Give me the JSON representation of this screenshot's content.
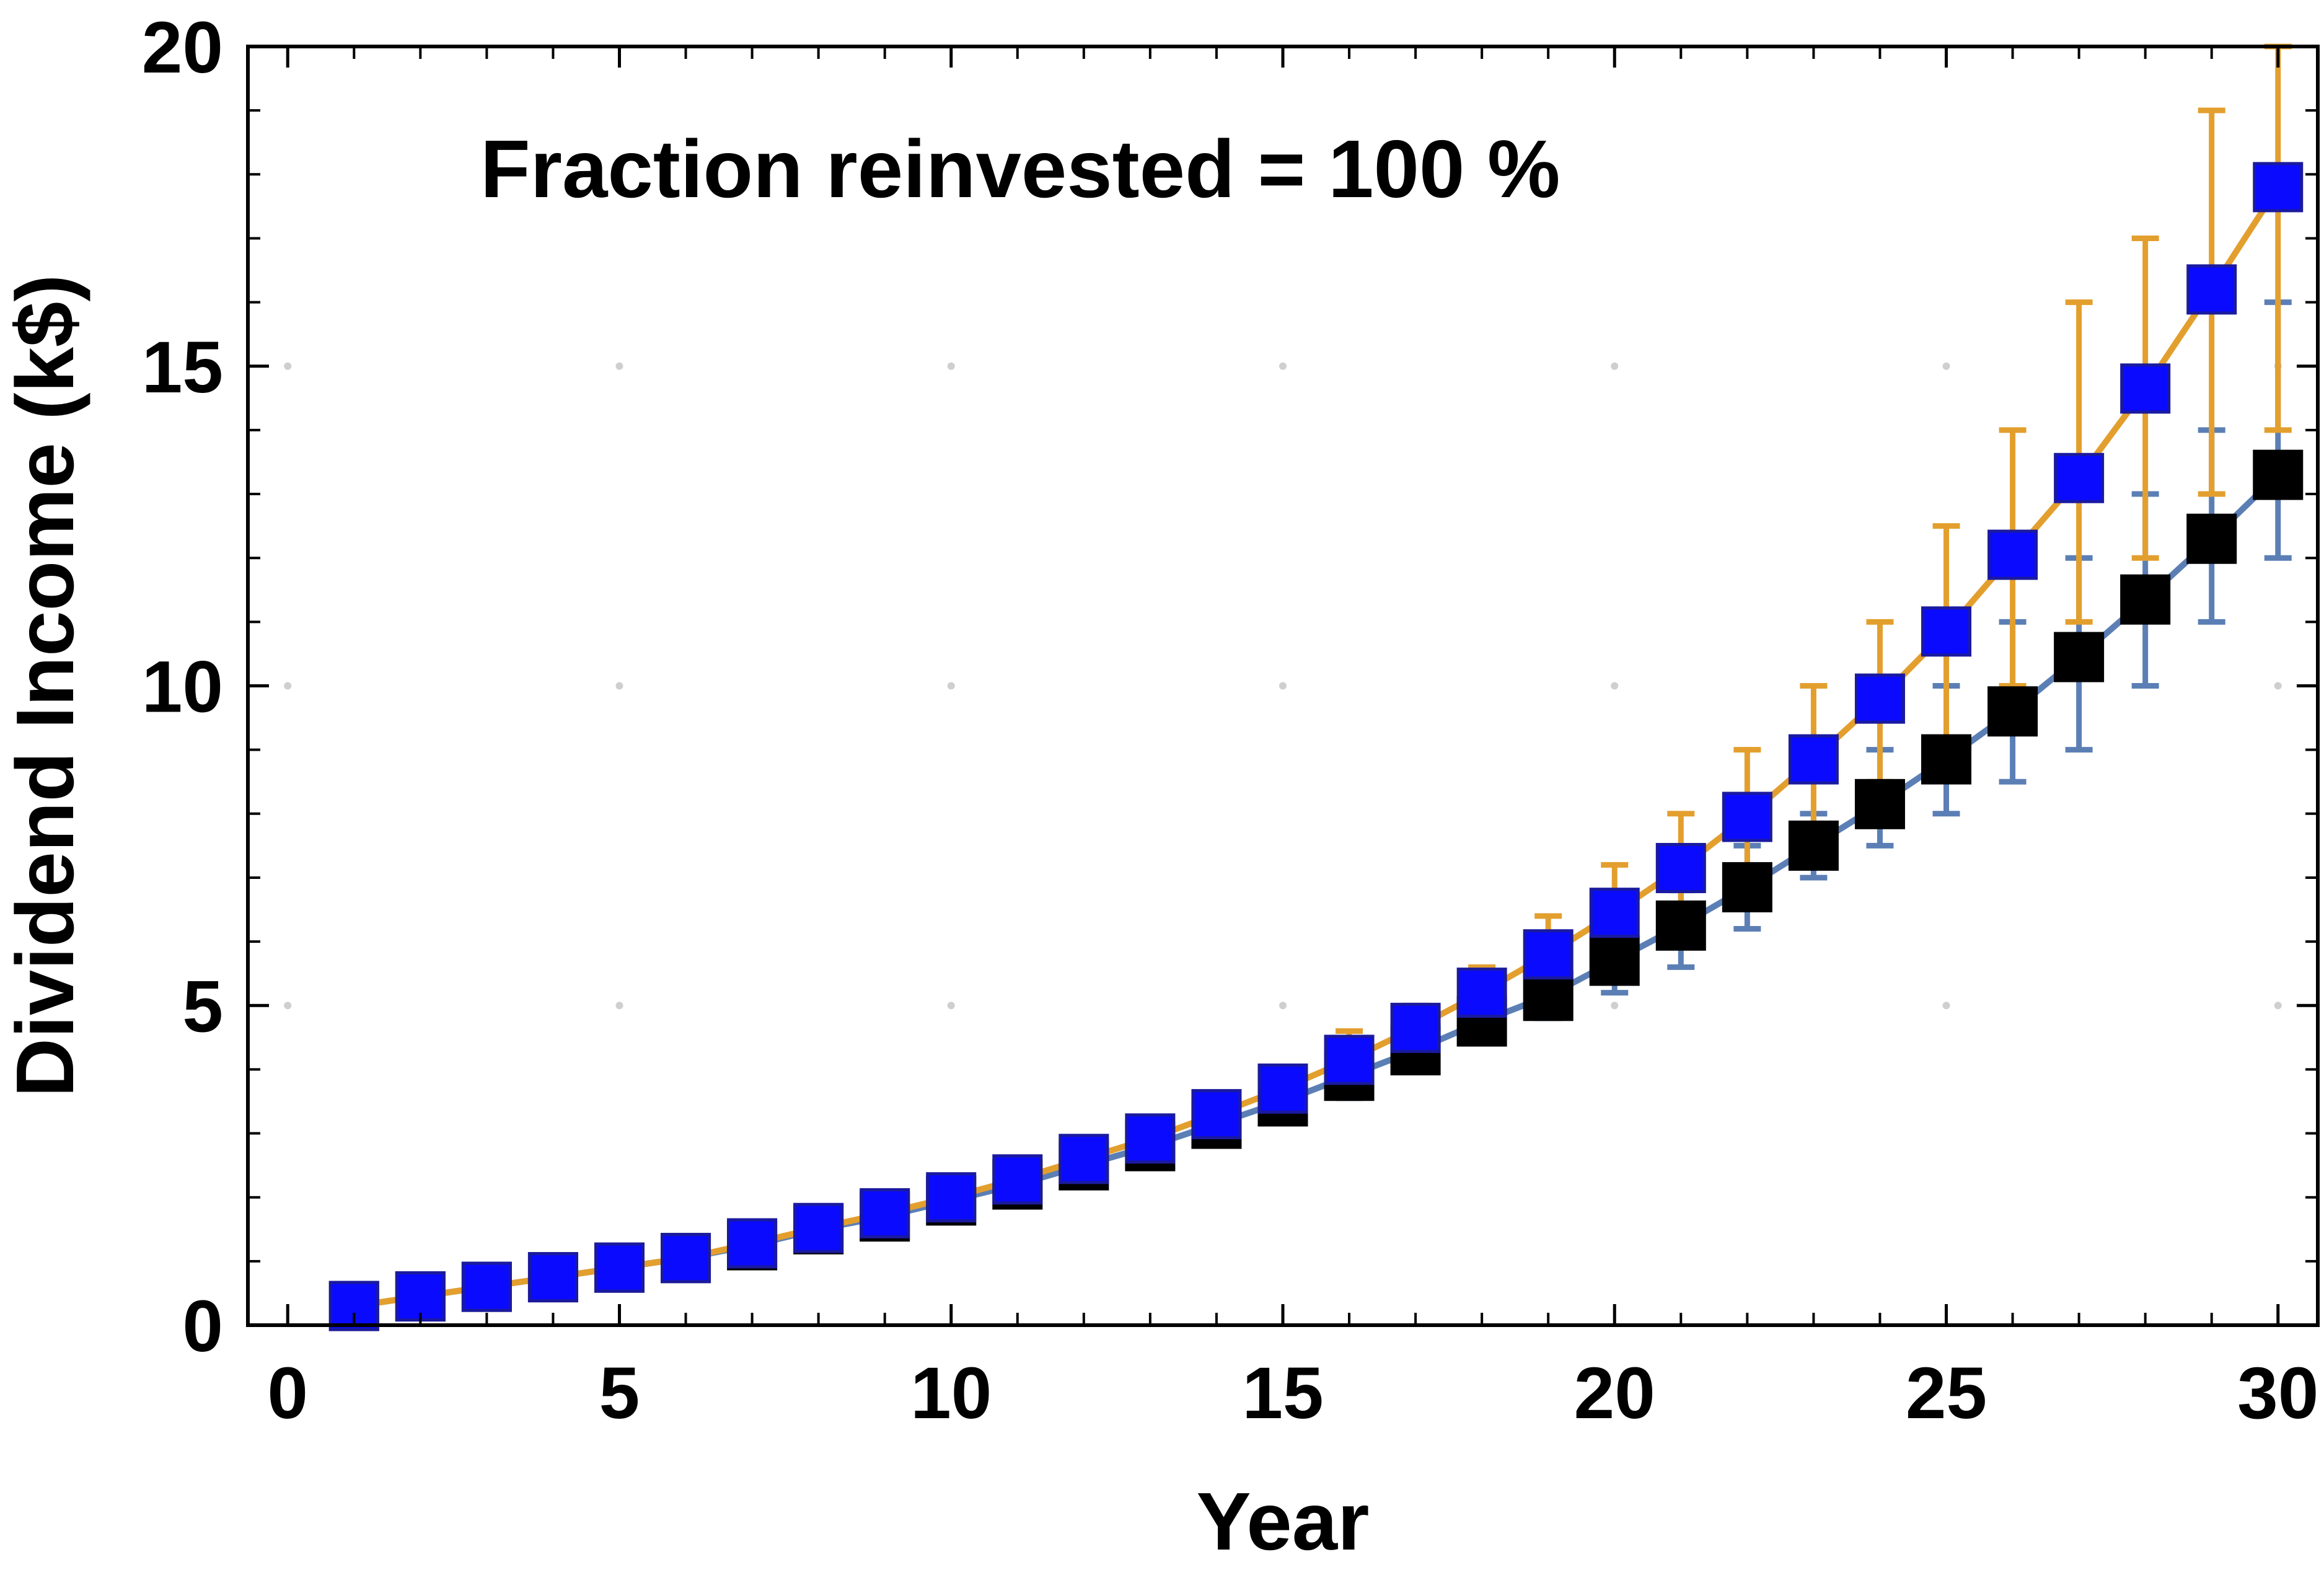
{
  "chart_data": {
    "type": "scatter",
    "annotation": "Fraction reinvested = 100 %",
    "xlabel": "Year",
    "ylabel": "Dividend Income (k$)",
    "xlim": [
      -0.6,
      30.6
    ],
    "ylim": [
      0,
      20
    ],
    "xticks": [
      0,
      5,
      10,
      15,
      20,
      25,
      30
    ],
    "yticks": [
      0,
      5,
      10,
      15,
      20
    ],
    "x_minor_ticks": [
      1,
      2,
      3,
      4,
      6,
      7,
      8,
      9,
      11,
      12,
      13,
      14,
      16,
      17,
      18,
      19,
      21,
      22,
      23,
      24,
      26,
      27,
      28,
      29
    ],
    "y_minor_ticks": [
      1,
      2,
      3,
      4,
      6,
      7,
      8,
      9,
      11,
      12,
      13,
      14,
      16,
      17,
      18,
      19
    ],
    "grid": "dotted",
    "x": [
      1,
      2,
      3,
      4,
      5,
      6,
      7,
      8,
      9,
      10,
      11,
      12,
      13,
      14,
      15,
      16,
      17,
      18,
      19,
      20,
      21,
      22,
      23,
      24,
      25,
      26,
      27,
      28,
      29,
      30
    ],
    "series": [
      {
        "marker_color": "#000000",
        "line_color": "#5b7fb5",
        "values": [
          0.3,
          0.45,
          0.6,
          0.75,
          0.9,
          1.05,
          1.25,
          1.5,
          1.7,
          1.95,
          2.2,
          2.5,
          2.8,
          3.15,
          3.5,
          3.9,
          4.3,
          4.75,
          5.15,
          5.7,
          6.25,
          6.85,
          7.5,
          8.15,
          8.85,
          9.6,
          10.45,
          11.35,
          12.3,
          13.3
        ],
        "err_low": [
          null,
          null,
          null,
          null,
          null,
          null,
          null,
          null,
          null,
          null,
          null,
          null,
          null,
          null,
          null,
          3.55,
          4.05,
          4.55,
          4.8,
          5.2,
          5.6,
          6.2,
          7.0,
          7.5,
          8.0,
          8.5,
          9.0,
          10.0,
          11.0,
          12.0
        ],
        "err_high": [
          null,
          null,
          null,
          null,
          null,
          null,
          null,
          null,
          null,
          null,
          null,
          null,
          null,
          null,
          null,
          4.2,
          4.6,
          5.0,
          5.5,
          6.2,
          6.8,
          7.5,
          8.0,
          9.0,
          10.0,
          11.0,
          12.0,
          13.0,
          14.0,
          16.0
        ]
      },
      {
        "marker_color": "#0a0aff",
        "line_color": "#e39f2e",
        "values": [
          0.3,
          0.45,
          0.6,
          0.75,
          0.9,
          1.05,
          1.28,
          1.52,
          1.75,
          2.0,
          2.28,
          2.6,
          2.92,
          3.3,
          3.7,
          4.15,
          4.65,
          5.2,
          5.8,
          6.45,
          7.15,
          7.95,
          8.85,
          9.8,
          10.85,
          12.05,
          13.25,
          14.65,
          16.2,
          17.8
        ],
        "err_low": [
          null,
          null,
          null,
          null,
          null,
          null,
          null,
          null,
          null,
          null,
          null,
          null,
          null,
          null,
          null,
          3.7,
          4.2,
          4.65,
          5.2,
          5.7,
          6.4,
          7.0,
          7.5,
          8.5,
          9.0,
          10.0,
          11.0,
          12.0,
          13.0,
          14.0
        ],
        "err_high": [
          null,
          null,
          null,
          null,
          null,
          null,
          null,
          null,
          null,
          null,
          null,
          null,
          null,
          null,
          null,
          4.6,
          5.0,
          5.6,
          6.4,
          7.2,
          8.0,
          9.0,
          10.0,
          11.0,
          12.5,
          14.0,
          16.0,
          17.0,
          19.0,
          20.0
        ]
      }
    ]
  }
}
